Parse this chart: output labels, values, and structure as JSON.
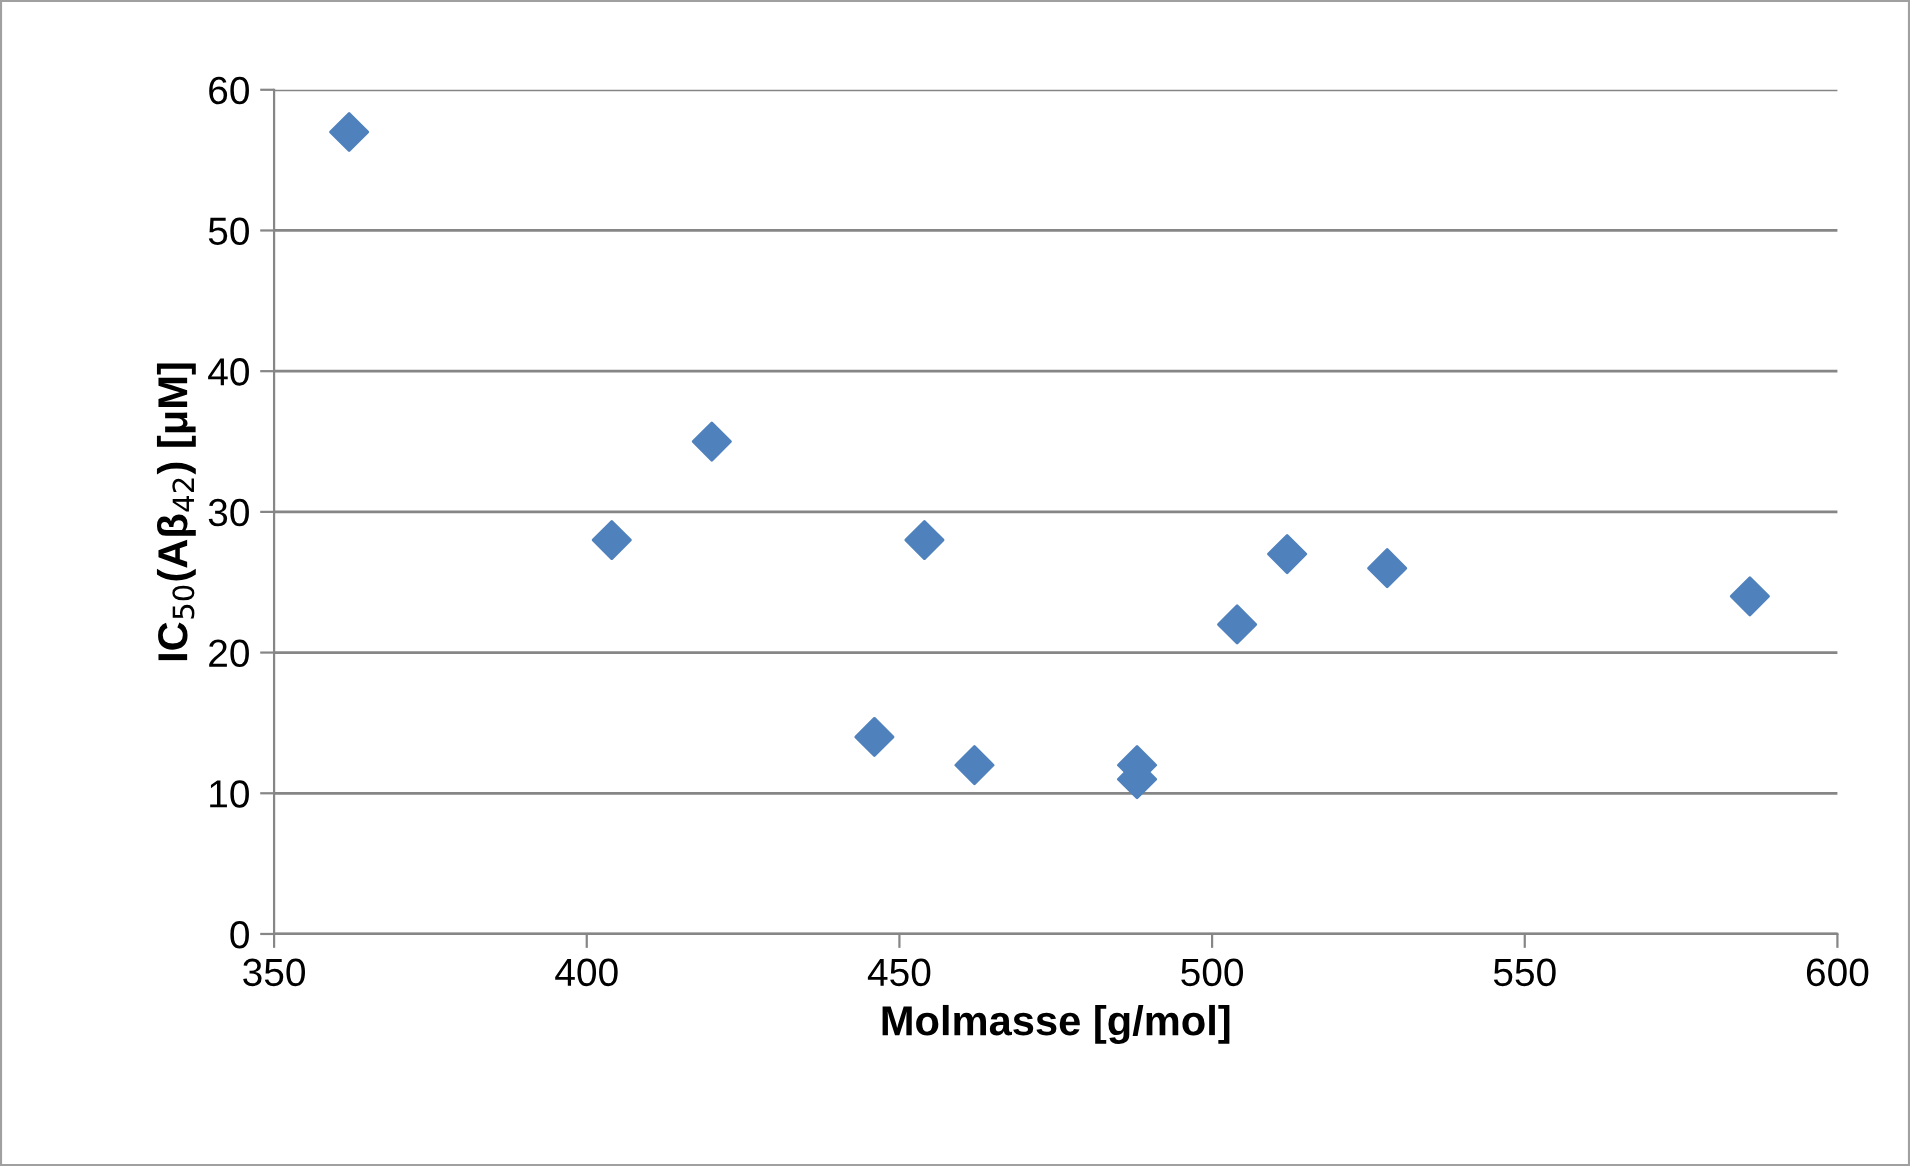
{
  "chart_data": {
    "type": "scatter",
    "xlabel": "Molmasse [g/mol]",
    "ylabel": "IC$_{50}$(Aβ$_{42}$) [μM]",
    "x": [
      362,
      404,
      420,
      446,
      454,
      462,
      488,
      488,
      504,
      512,
      528,
      586
    ],
    "series": [
      {
        "color": "#4f81bd",
        "values": [
          57,
          28,
          35,
          14,
          28,
          12,
          12,
          11,
          22,
          27,
          26,
          24
        ]
      }
    ],
    "xlim": [
      350,
      600
    ],
    "xticks": [
      350,
      400,
      450,
      500,
      550,
      600
    ],
    "ylim": [
      0,
      60
    ],
    "yticks": [
      0,
      10,
      20,
      30,
      40,
      50,
      60
    ],
    "grid": "y",
    "legend": false,
    "marker": "diamond"
  }
}
